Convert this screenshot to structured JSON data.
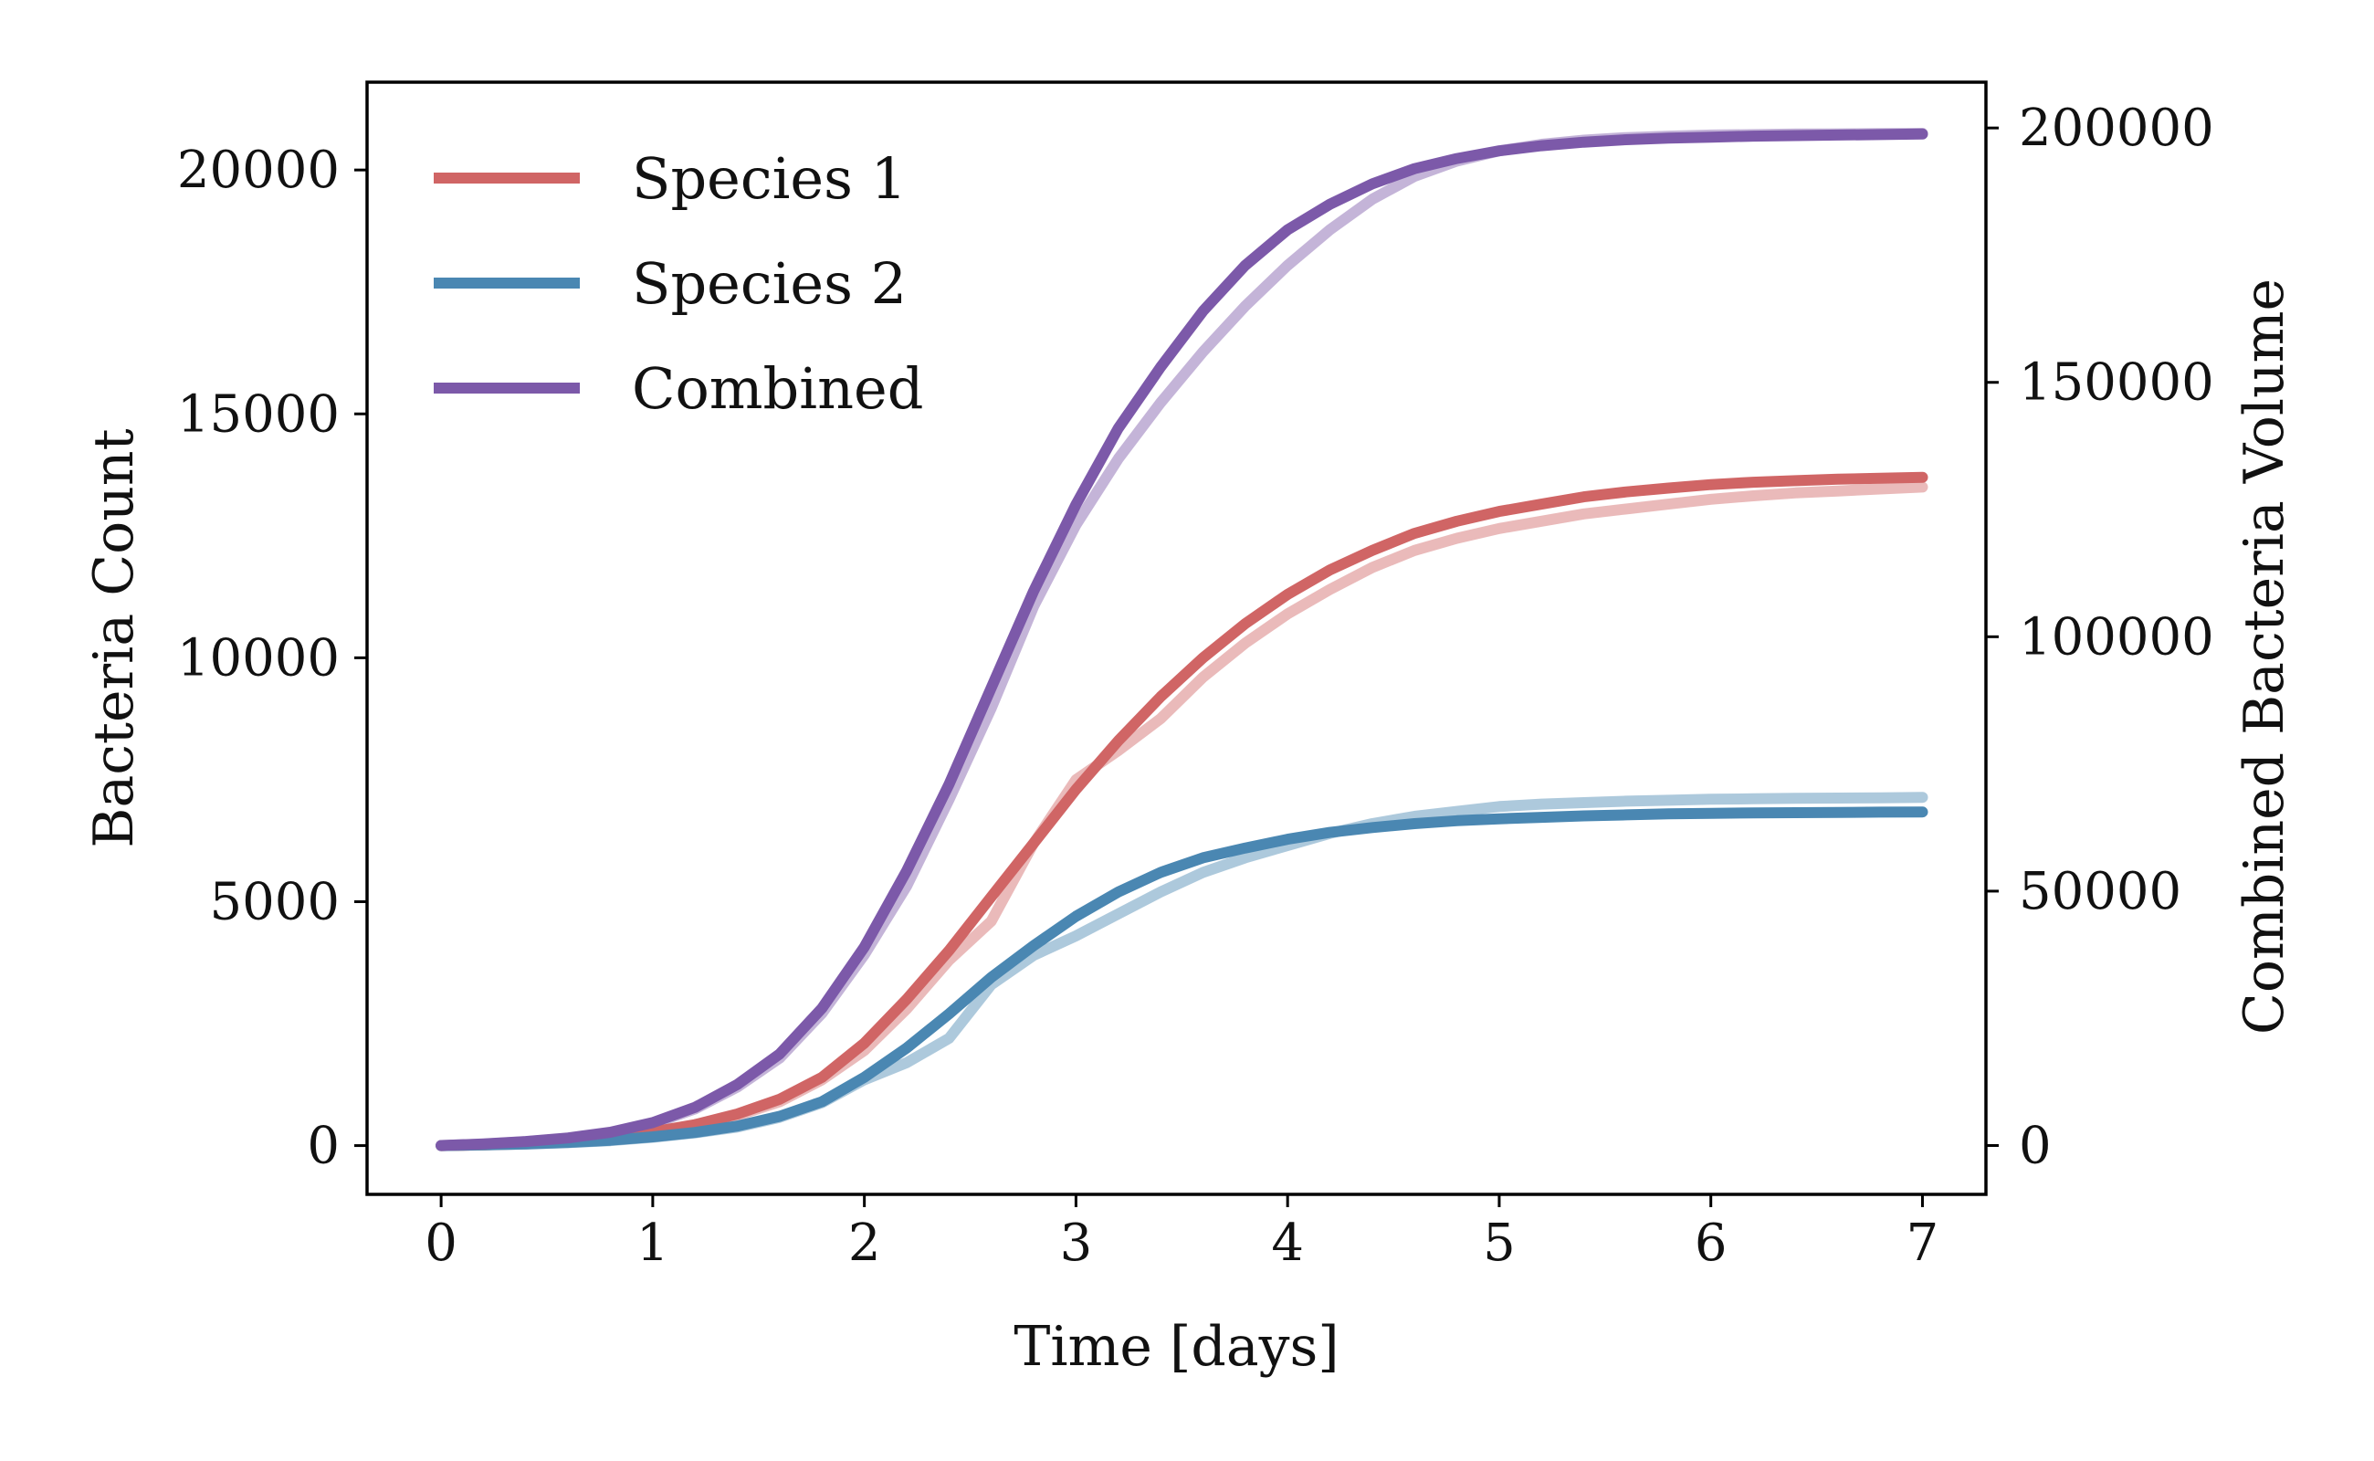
{
  "chart_data": {
    "type": "line",
    "xlabel": "Time [days]",
    "ylabel": "Bacteria Count",
    "ylabel_right": "Combined Bacteria Volume",
    "xlim": [
      -0.35,
      7.3
    ],
    "ylim": [
      -1000,
      21800
    ],
    "ylim_right": [
      -9600,
      209000
    ],
    "x_ticks": [
      0,
      1,
      2,
      3,
      4,
      5,
      6,
      7
    ],
    "y_ticks": [
      0,
      5000,
      10000,
      15000,
      20000
    ],
    "y_ticks_right": [
      0,
      50000,
      100000,
      150000,
      200000
    ],
    "legend_position": "top-left",
    "grid": false,
    "colors": {
      "species1": "#d06565",
      "species2": "#4a87b2",
      "combined": "#7c59a9"
    },
    "x": [
      0,
      0.2,
      0.4,
      0.6,
      0.8,
      1.0,
      1.2,
      1.4,
      1.6,
      1.8,
      2.0,
      2.2,
      2.4,
      2.6,
      2.8,
      3.0,
      3.2,
      3.4,
      3.6,
      3.8,
      4.0,
      4.2,
      4.4,
      4.6,
      4.8,
      5.0,
      5.2,
      5.4,
      5.6,
      5.8,
      6.0,
      6.2,
      6.4,
      6.6,
      6.8,
      7.0
    ],
    "series": [
      {
        "name": "Species 1",
        "key": "species1",
        "axis": "left",
        "values": [
          0,
          15,
          40,
          80,
          150,
          280,
          430,
          650,
          950,
          1400,
          2100,
          3000,
          4000,
          5100,
          6200,
          7300,
          8300,
          9200,
          10000,
          10700,
          11300,
          11800,
          12200,
          12550,
          12800,
          13000,
          13150,
          13300,
          13400,
          13480,
          13550,
          13600,
          13630,
          13660,
          13680,
          13700
        ]
      },
      {
        "name": "Species 2",
        "key": "species2",
        "axis": "left",
        "values": [
          0,
          15,
          35,
          65,
          110,
          180,
          270,
          400,
          600,
          900,
          1400,
          2000,
          2700,
          3450,
          4100,
          4700,
          5200,
          5600,
          5900,
          6100,
          6280,
          6420,
          6520,
          6600,
          6660,
          6700,
          6730,
          6760,
          6780,
          6800,
          6810,
          6820,
          6825,
          6830,
          6835,
          6840
        ]
      },
      {
        "name": "Combined",
        "key": "combined",
        "axis": "right",
        "values": [
          0,
          300,
          800,
          1500,
          2600,
          4500,
          7500,
          12000,
          18000,
          27000,
          39000,
          54000,
          71000,
          90000,
          109000,
          126000,
          141000,
          153000,
          164000,
          173000,
          180000,
          185000,
          189000,
          192000,
          194000,
          195500,
          196500,
          197200,
          197700,
          198000,
          198200,
          198400,
          198500,
          198600,
          198700,
          198800
        ]
      },
      {
        "name": "",
        "key": "species1",
        "axis": "left",
        "faint": true,
        "values": [
          0,
          12,
          35,
          75,
          140,
          260,
          400,
          620,
          900,
          1350,
          1950,
          2800,
          3800,
          4600,
          6200,
          7500,
          8100,
          8750,
          9600,
          10300,
          10900,
          11400,
          11850,
          12200,
          12450,
          12650,
          12800,
          12950,
          13050,
          13150,
          13250,
          13320,
          13380,
          13420,
          13460,
          13500
        ]
      },
      {
        "name": "",
        "key": "species2",
        "axis": "left",
        "faint": true,
        "values": [
          0,
          12,
          30,
          60,
          100,
          170,
          260,
          380,
          580,
          880,
          1350,
          1700,
          2200,
          3300,
          3900,
          4300,
          4750,
          5200,
          5600,
          5900,
          6150,
          6400,
          6600,
          6750,
          6850,
          6950,
          7000,
          7030,
          7060,
          7080,
          7100,
          7110,
          7120,
          7125,
          7130,
          7140
        ]
      },
      {
        "name": "",
        "key": "combined",
        "axis": "right",
        "faint": true,
        "values": [
          0,
          280,
          750,
          1400,
          2500,
          4300,
          7200,
          11500,
          17200,
          26000,
          37500,
          51000,
          68000,
          86000,
          106000,
          122000,
          135000,
          146000,
          156000,
          165000,
          173000,
          180000,
          186000,
          190500,
          193500,
          195500,
          196800,
          197600,
          198100,
          198400,
          198600,
          198700,
          198800,
          198850,
          198900,
          198950
        ]
      }
    ]
  }
}
